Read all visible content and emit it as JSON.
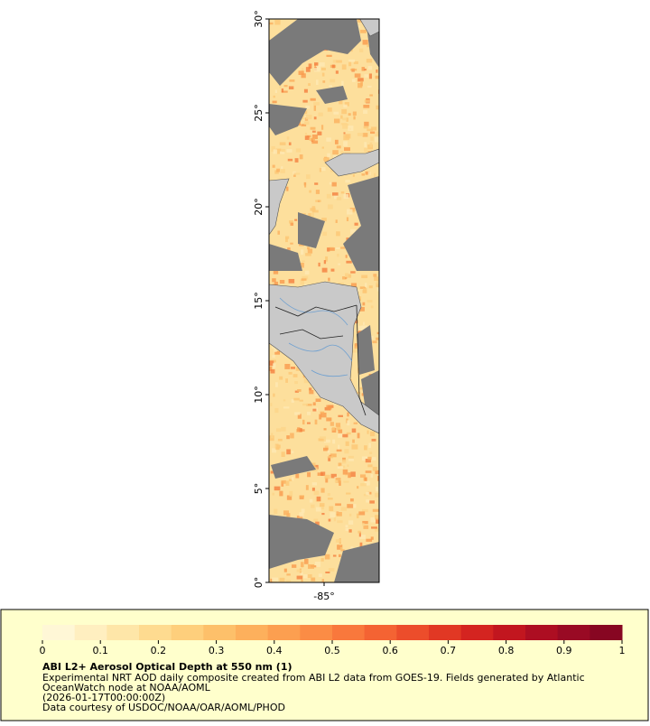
{
  "map": {
    "ylim": [
      0,
      30
    ],
    "yticks": [
      {
        "value": 0,
        "label": "0°"
      },
      {
        "value": 5,
        "label": "5°"
      },
      {
        "value": 10,
        "label": "10°"
      },
      {
        "value": 15,
        "label": "15°"
      },
      {
        "value": 20,
        "label": "20°"
      },
      {
        "value": 25,
        "label": "25°"
      },
      {
        "value": 30,
        "label": "30°"
      }
    ],
    "xlim": [
      -88,
      -82
    ],
    "xticks": [
      {
        "value": -85,
        "label": "-85°"
      }
    ]
  },
  "colorbar": {
    "lim": [
      0,
      1
    ],
    "ticks": [
      0,
      0.1,
      0.2,
      0.3,
      0.4,
      0.5,
      0.6,
      0.7,
      0.8,
      0.9,
      1
    ],
    "colors": [
      "#fff7d6",
      "#ffefc0",
      "#fee6a8",
      "#fedb90",
      "#fecf7c",
      "#fdc06a",
      "#fdb05c",
      "#fc9f50",
      "#fb8c45",
      "#f9783c",
      "#f46333",
      "#ec4d2b",
      "#e13824",
      "#d42420",
      "#c2161f",
      "#ad0e22",
      "#990a24",
      "#870622"
    ],
    "title": "ABI L2+ Aerosol Optical Depth at 550 nm (1)",
    "lines": [
      "Experimental NRT AOD daily composite created from ABI L2 data from GOES-19. Fields generated by Atlantic",
      "OceanWatch node at NOAA/AOML",
      "(2026-01-17T00:00:00Z)",
      "Data courtesy of USDOC/NOAA/OAR/AOML/PHOD"
    ]
  }
}
